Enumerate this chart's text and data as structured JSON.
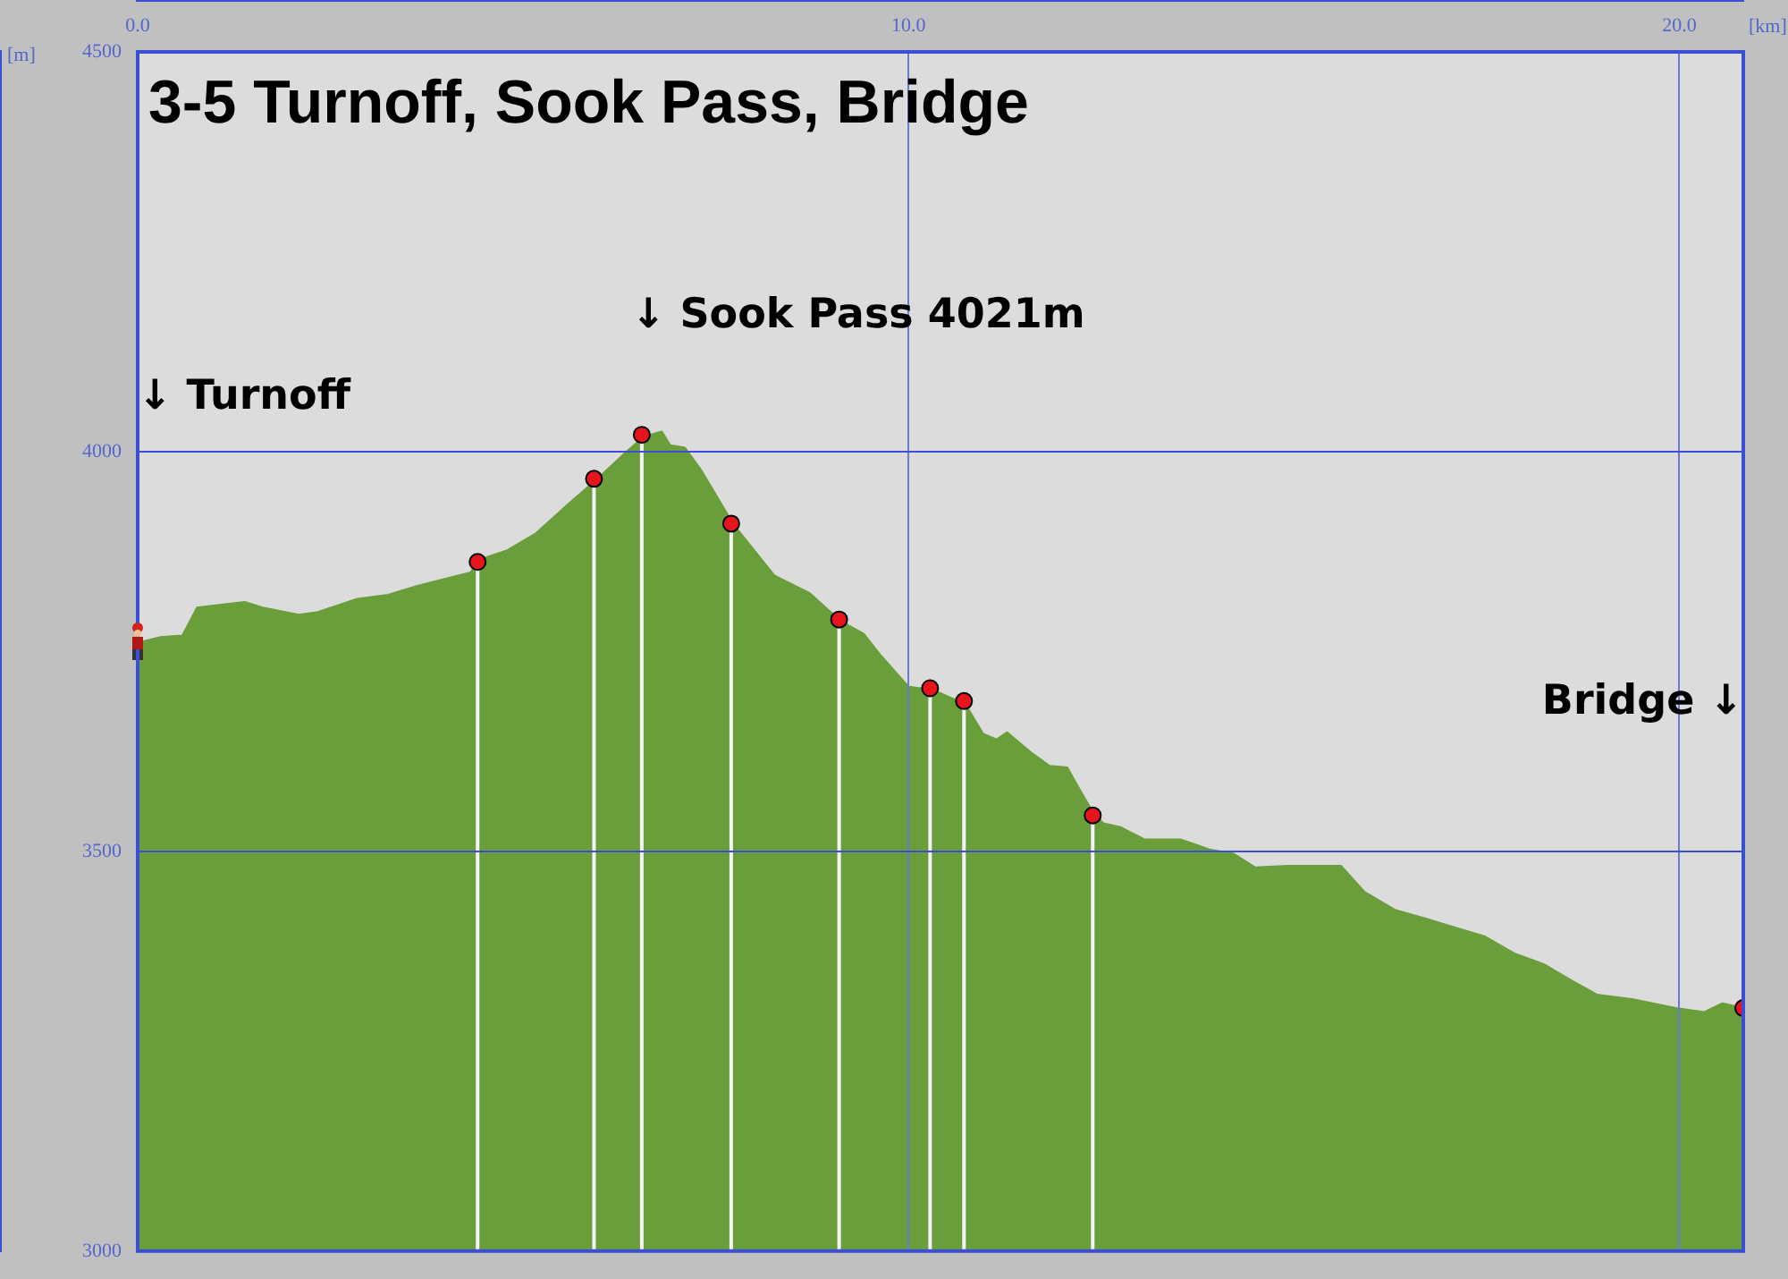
{
  "chart_data": {
    "type": "area",
    "title": "3-5 Turnoff, Sook Pass, Bridge",
    "xlabel": "[km]",
    "ylabel": "[m]",
    "xlim": [
      0,
      20.83
    ],
    "xticks": [
      {
        "value": 0,
        "label": "0.0"
      },
      {
        "value": 10,
        "label": "10.0"
      },
      {
        "value": 20,
        "label": "20.0"
      }
    ],
    "ylim": [
      3000,
      4500
    ],
    "yticks": [
      3000,
      3500,
      4000,
      4500
    ],
    "grid": true,
    "series": [
      {
        "type": "area",
        "color": "#6a9e3b",
        "x": [
          0,
          0.3,
          0.58,
          0.77,
          1.39,
          1.62,
          2.09,
          2.32,
          2.85,
          3.25,
          3.62,
          4.32,
          4.43,
          4.78,
          5.17,
          5.57,
          5.94,
          6.33,
          6.57,
          6.8,
          6.91,
          7.1,
          7.31,
          7.73,
          8.26,
          8.72,
          9.12,
          9.42,
          9.65,
          10.0,
          10.32,
          10.74,
          10.97,
          11.14,
          11.28,
          11.6,
          11.83,
          12.06,
          12.2,
          12.41,
          12.53,
          12.76,
          13.06,
          13.53,
          13.92,
          14.22,
          14.5,
          14.92,
          15.61,
          15.92,
          16.31,
          16.71,
          17.08,
          17.47,
          17.87,
          18.24,
          18.63,
          18.93,
          19.4,
          19.95,
          20.32,
          20.56,
          20.83
        ],
        "values": [
          3761,
          3768,
          3770,
          3805,
          3812,
          3805,
          3796,
          3799,
          3816,
          3821,
          3832,
          3849,
          3865,
          3876,
          3898,
          3933,
          3964,
          3999,
          4019,
          4025,
          4008,
          4005,
          3977,
          3909,
          3845,
          3823,
          3788,
          3772,
          3744,
          3706,
          3702,
          3684,
          3647,
          3640,
          3649,
          3623,
          3607,
          3605,
          3581,
          3546,
          3535,
          3530,
          3515,
          3515,
          3502,
          3497,
          3480,
          3482,
          3482,
          3449,
          3427,
          3416,
          3405,
          3394,
          3372,
          3359,
          3337,
          3321,
          3315,
          3304,
          3299,
          3310,
          3304
        ]
      },
      {
        "type": "lollipop",
        "color": "#e8141c",
        "marker": "circle",
        "x": [
          4.41,
          5.92,
          6.54,
          7.7,
          9.1,
          10.28,
          10.72,
          12.39,
          20.83
        ],
        "values": [
          3862,
          3966,
          4021,
          3910,
          3790,
          3704,
          3688,
          3545,
          3304
        ]
      }
    ],
    "annotations": [
      "↓ Turnoff",
      {
        "text": "↓ Sook Pass 4021m",
        "x": 6.54,
        "y": 4021
      },
      "Bridge ↓"
    ]
  }
}
